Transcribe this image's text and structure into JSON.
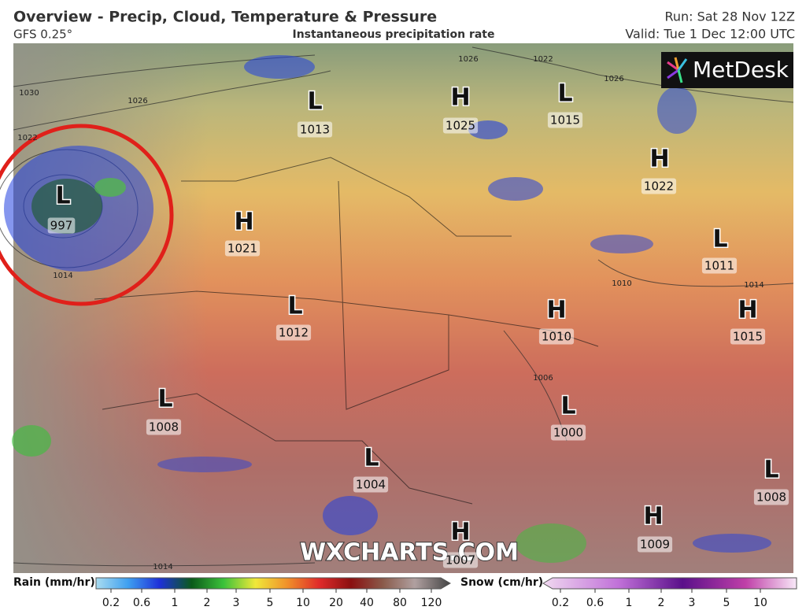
{
  "header": {
    "title": "Overview - Precip, Cloud, Temperature & Pressure",
    "model": "GFS 0.25°",
    "subtitle": "Instantaneous precipitation rate",
    "run": "Run: Sat 28 Nov 12Z",
    "valid": "Valid: Tue 1 Dec 12:00 UTC"
  },
  "logo": "MetDesk",
  "watermark": "WXCHARTS.COM",
  "pressure_centers": [
    {
      "type": "L",
      "value": "1013"
    },
    {
      "type": "H",
      "value": "1025"
    },
    {
      "type": "L",
      "value": "1015"
    },
    {
      "type": "H",
      "value": "1022"
    },
    {
      "type": "L",
      "value": "997"
    },
    {
      "type": "H",
      "value": "1021"
    },
    {
      "type": "L",
      "value": "1011"
    },
    {
      "type": "L",
      "value": "1012"
    },
    {
      "type": "H",
      "value": "1010"
    },
    {
      "type": "H",
      "value": "1015"
    },
    {
      "type": "L",
      "value": "1008"
    },
    {
      "type": "L",
      "value": "1000"
    },
    {
      "type": "L",
      "value": "1004"
    },
    {
      "type": "L",
      "value": "1008"
    },
    {
      "type": "H",
      "value": "1009"
    },
    {
      "type": "H",
      "value": "1007"
    }
  ],
  "isobar_labels": [
    "1030",
    "1026",
    "1022",
    "1014",
    "1022",
    "1026",
    "1026",
    "1010",
    "1014",
    "1006",
    "1014"
  ],
  "legend": {
    "rain": {
      "title": "Rain (mm/hr)",
      "labels": [
        "0.2",
        "0.6",
        "1",
        "2",
        "3",
        "5",
        "10",
        "20",
        "40",
        "80",
        "120"
      ]
    },
    "snow": {
      "title": "Snow (cm/hr)",
      "labels": [
        "0.2",
        "0.6",
        "1",
        "2",
        "3",
        "5",
        "10"
      ]
    }
  }
}
